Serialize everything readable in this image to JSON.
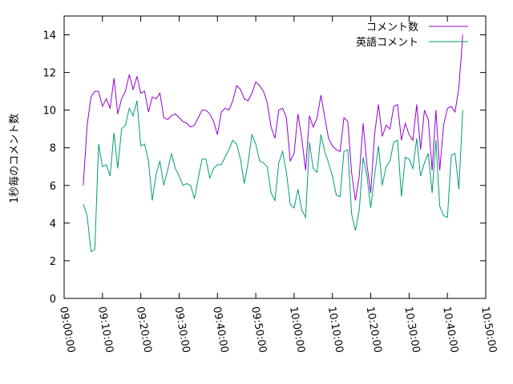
{
  "chart_data": {
    "type": "line",
    "ylabel": "1秒毎のコメント数",
    "xlabel": "",
    "ylim": [
      0,
      15
    ],
    "yticks": [
      0,
      2,
      4,
      6,
      8,
      10,
      12,
      14
    ],
    "xlim": [
      "09:00:00",
      "10:50:00"
    ],
    "xticks": [
      "09:00:00",
      "09:10:00",
      "09:20:00",
      "09:30:00",
      "09:40:00",
      "09:50:00",
      "10:00:00",
      "10:10:00",
      "10:20:00",
      "10:30:00",
      "10:40:00",
      "10:50:00"
    ],
    "x_step_seconds": 60,
    "x_start": "09:05:00",
    "grid": false,
    "legend_position": "top-right",
    "series": [
      {
        "name": "コメント数",
        "color": "#9400d3",
        "values": [
          6.0,
          9.2,
          10.7,
          11.0,
          11.0,
          10.2,
          10.6,
          10.1,
          11.7,
          9.8,
          10.6,
          11.0,
          11.9,
          11.1,
          11.8,
          10.9,
          11.0,
          9.9,
          10.7,
          10.6,
          10.9,
          9.6,
          9.5,
          9.7,
          9.8,
          9.6,
          9.4,
          9.3,
          9.1,
          9.2,
          9.6,
          10.0,
          10.0,
          9.8,
          9.4,
          8.7,
          9.9,
          10.1,
          10.0,
          10.5,
          11.3,
          11.1,
          10.6,
          10.5,
          10.9,
          11.5,
          11.3,
          11.0,
          10.4,
          9.1,
          8.5,
          10.0,
          10.1,
          9.6,
          7.3,
          7.7,
          9.8,
          8.5,
          6.8,
          9.7,
          9.1,
          9.6,
          10.8,
          9.6,
          8.5,
          8.1,
          7.9,
          7.8,
          9.6,
          9.4,
          6.7,
          5.2,
          6.5,
          9.3,
          7.1,
          5.6,
          8.7,
          10.3,
          8.6,
          9.2,
          9.0,
          10.2,
          10.3,
          8.4,
          9.3,
          8.7,
          8.4,
          10.3,
          7.9,
          10.0,
          9.5,
          6.8,
          10.0,
          6.8,
          9.2,
          10.1,
          10.2,
          9.9,
          11.2,
          14.0
        ]
      },
      {
        "name": "英語コメント",
        "color": "#009e73",
        "values": [
          5.0,
          4.4,
          2.5,
          2.6,
          8.2,
          7.0,
          7.1,
          6.5,
          8.8,
          6.9,
          9.0,
          9.2,
          10.1,
          9.7,
          10.5,
          8.1,
          8.2,
          7.3,
          5.2,
          6.6,
          7.3,
          6.0,
          6.8,
          7.7,
          6.9,
          6.5,
          6.0,
          6.1,
          6.0,
          5.3,
          6.4,
          7.4,
          7.4,
          6.4,
          6.9,
          7.1,
          7.1,
          7.5,
          7.9,
          8.4,
          8.2,
          7.4,
          6.1,
          7.2,
          8.7,
          8.2,
          7.3,
          7.2,
          7.0,
          5.6,
          5.2,
          7.2,
          7.8,
          6.7,
          5.0,
          4.8,
          5.8,
          4.7,
          4.3,
          8.3,
          6.9,
          6.7,
          8.7,
          7.8,
          7.2,
          6.5,
          5.5,
          5.4,
          7.8,
          7.9,
          4.5,
          3.6,
          4.7,
          7.5,
          6.5,
          4.8,
          6.5,
          8.1,
          6.0,
          7.0,
          7.3,
          8.3,
          8.4,
          5.4,
          7.5,
          7.4,
          6.9,
          8.5,
          6.5,
          7.2,
          7.7,
          5.6,
          8.4,
          4.9,
          4.4,
          4.3,
          7.6,
          7.7,
          5.8,
          10.0
        ]
      }
    ]
  }
}
